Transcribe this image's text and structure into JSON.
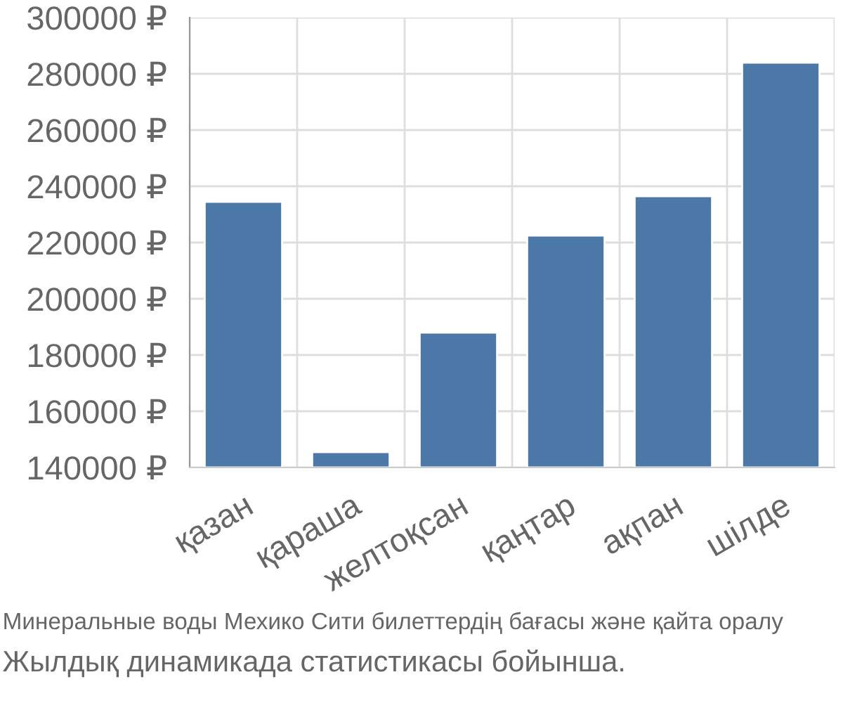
{
  "chart_data": {
    "type": "bar",
    "categories": [
      "қазан",
      "қараша",
      "желтоқсан",
      "қаңтар",
      "ақпан",
      "шілде"
    ],
    "values": [
      234500,
      145500,
      188000,
      222500,
      236500,
      284000
    ],
    "color": "#4c78a8",
    "ylim": [
      140000,
      300000
    ],
    "yticks": [
      {
        "value": 140000,
        "label": "140000 ₽"
      },
      {
        "value": 160000,
        "label": "160000 ₽"
      },
      {
        "value": 180000,
        "label": "180000 ₽"
      },
      {
        "value": 200000,
        "label": "200000 ₽"
      },
      {
        "value": 220000,
        "label": "220000 ₽"
      },
      {
        "value": 240000,
        "label": "240000 ₽"
      },
      {
        "value": 260000,
        "label": "260000 ₽"
      },
      {
        "value": 280000,
        "label": "280000 ₽"
      },
      {
        "value": 300000,
        "label": "300000 ₽"
      }
    ],
    "grid": true,
    "annotations": [
      "Минеральные воды Мехико Сити билеттердің бағасы және қайта оралу",
      "Жылдық динамикада статистикасы бойынша."
    ]
  }
}
